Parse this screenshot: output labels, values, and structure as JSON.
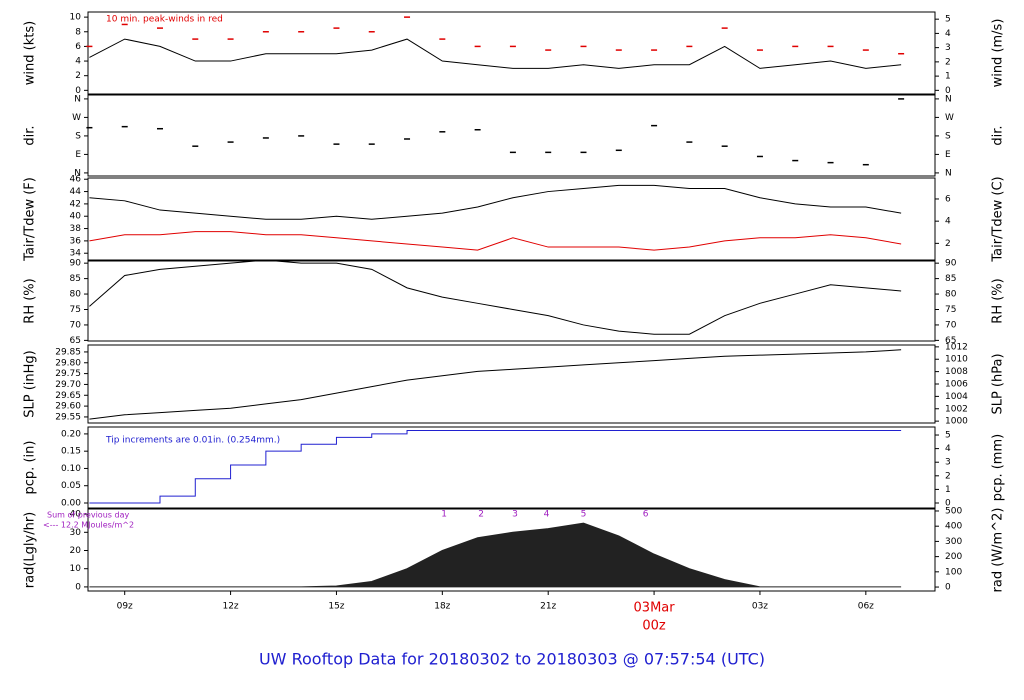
{
  "title": "UW Rooftop Data for 20180302  to  20180303 @ 07:57:54  (UTC)",
  "chart_data": [
    {
      "type": "line",
      "ylabel": "wind (kts)",
      "y2label": "wind (m/s)",
      "annotation": "10 min. peak-winds in red",
      "annotation_color": "#e00000",
      "xlim": [
        7.96,
        31.96
      ],
      "x": [
        8,
        9,
        10,
        11,
        12,
        13,
        14,
        15,
        16,
        17,
        18,
        19,
        20,
        21,
        22,
        23,
        24,
        25,
        26,
        27,
        28,
        29,
        30,
        31
      ],
      "ylim": [
        -0.5,
        10.7
      ],
      "yticks": [
        0,
        2,
        4,
        6,
        8,
        10
      ],
      "y2lim": [
        -0.257,
        5.504
      ],
      "y2ticks": [
        0,
        1,
        2,
        3,
        4,
        5
      ],
      "series": [
        {
          "draw": "line",
          "color": "#000000",
          "values": [
            4.5,
            7,
            6,
            4,
            4,
            5,
            5,
            5,
            5.5,
            7,
            4,
            3.5,
            3,
            3,
            3.5,
            3,
            3.5,
            3.5,
            6,
            3,
            3.5,
            4,
            3,
            3.5
          ]
        },
        {
          "draw": "dash",
          "color": "#e00000",
          "values": [
            6,
            9,
            8.5,
            7,
            7,
            8,
            8,
            8.5,
            8,
            10,
            7,
            6,
            6,
            5.5,
            6,
            5.5,
            5.5,
            6,
            8.5,
            5.5,
            6,
            6,
            5.5,
            5
          ]
        }
      ]
    },
    {
      "type": "line",
      "ylabel": "dir.",
      "y2label": "dir.",
      "xlim": [
        7.96,
        31.96
      ],
      "x": [
        8,
        9,
        10,
        11,
        12,
        13,
        14,
        15,
        16,
        17,
        18,
        19,
        20,
        21,
        22,
        23,
        24,
        25,
        26,
        27,
        28,
        29,
        30,
        31
      ],
      "ylim": [
        -15,
        379
      ],
      "yticks": [
        {
          "value": 0,
          "label": "N"
        },
        {
          "value": 90,
          "label": "E"
        },
        {
          "value": 180,
          "label": "S"
        },
        {
          "value": 270,
          "label": "W"
        },
        {
          "value": 360,
          "label": "N"
        }
      ],
      "y2lim": [
        -15,
        379
      ],
      "y2ticks": [
        {
          "value": 0,
          "label": "N"
        },
        {
          "value": 90,
          "label": "E"
        },
        {
          "value": 180,
          "label": "S"
        },
        {
          "value": 270,
          "label": "W"
        },
        {
          "value": 360,
          "label": "N"
        }
      ],
      "series": [
        {
          "draw": "dash",
          "color": "#000000",
          "values": [
            220,
            225,
            215,
            130,
            150,
            170,
            180,
            140,
            140,
            165,
            200,
            210,
            100,
            100,
            100,
            110,
            230,
            150,
            130,
            80,
            60,
            50,
            40,
            360
          ]
        }
      ]
    },
    {
      "type": "line",
      "ylabel": "Tair/Tdew (F)",
      "y2label": "Tair/Tdew (C)",
      "xlim": [
        7.96,
        31.96
      ],
      "x": [
        8,
        9,
        10,
        11,
        12,
        13,
        14,
        15,
        16,
        17,
        18,
        19,
        20,
        21,
        22,
        23,
        24,
        25,
        26,
        27,
        28,
        29,
        30,
        31
      ],
      "ylim": [
        32.9,
        46.2
      ],
      "yticks": [
        34,
        36,
        38,
        40,
        42,
        44,
        46
      ],
      "y2lim": [
        0.5,
        7.89
      ],
      "y2ticks": [
        2,
        4,
        6
      ],
      "series": [
        {
          "draw": "line",
          "color": "#000000",
          "values": [
            43,
            42.5,
            41,
            40.5,
            40,
            39.5,
            39.5,
            40,
            39.5,
            40,
            40.5,
            41.5,
            43,
            44,
            44.5,
            45,
            45,
            44.5,
            44.5,
            43,
            42,
            41.5,
            41.5,
            40.5
          ]
        },
        {
          "draw": "line",
          "color": "#e00000",
          "values": [
            36,
            37,
            37,
            37.5,
            37.5,
            37,
            37,
            36.5,
            36,
            35.5,
            35,
            34.5,
            36.5,
            35,
            35,
            35,
            34.5,
            35,
            36,
            36.5,
            36.5,
            37,
            36.5,
            35.5
          ]
        }
      ]
    },
    {
      "type": "line",
      "ylabel": "RH (%)",
      "y2label": "RH (%)",
      "xlim": [
        7.96,
        31.96
      ],
      "x": [
        8,
        9,
        10,
        11,
        12,
        13,
        14,
        15,
        16,
        17,
        18,
        19,
        20,
        21,
        22,
        23,
        24,
        25,
        26,
        27,
        28,
        29,
        30,
        31
      ],
      "ylim": [
        64.8,
        90.7
      ],
      "yticks": [
        65,
        70,
        75,
        80,
        85,
        90
      ],
      "y2lim": [
        64.8,
        90.7
      ],
      "y2ticks": [
        65,
        70,
        75,
        80,
        85,
        90
      ],
      "series": [
        {
          "draw": "line",
          "color": "#000000",
          "values": [
            76,
            86,
            88,
            89,
            90,
            91,
            90,
            90,
            88,
            82,
            79,
            77,
            75,
            73,
            70,
            68,
            67,
            67,
            73,
            77,
            80,
            83,
            82,
            81
          ]
        }
      ]
    },
    {
      "type": "line",
      "ylabel": "SLP (inHg)",
      "y2label": "SLP (hPa)",
      "xlim": [
        7.96,
        31.96
      ],
      "x": [
        8,
        9,
        10,
        11,
        12,
        13,
        14,
        15,
        16,
        17,
        18,
        19,
        20,
        21,
        22,
        23,
        24,
        25,
        26,
        27,
        28,
        29,
        30,
        31
      ],
      "ylim": [
        29.522,
        29.882
      ],
      "yticks": [
        29.55,
        {
          "value": 29.6,
          "label": "29.60"
        },
        29.65,
        {
          "value": 29.7,
          "label": "29.70"
        },
        29.75,
        {
          "value": 29.8,
          "label": "29.80"
        },
        29.85
      ],
      "y2lim": [
        999.7,
        1012.3
      ],
      "y2ticks": [
        1000,
        1002,
        1004,
        1006,
        1008,
        1010,
        1012
      ],
      "series": [
        {
          "draw": "line",
          "color": "#000000",
          "values": [
            29.54,
            29.56,
            29.57,
            29.58,
            29.59,
            29.61,
            29.63,
            29.66,
            29.69,
            29.72,
            29.74,
            29.76,
            29.77,
            29.78,
            29.79,
            29.8,
            29.81,
            29.82,
            29.83,
            29.835,
            29.84,
            29.845,
            29.85,
            29.86
          ]
        }
      ]
    },
    {
      "type": "line",
      "ylabel": "pcp. (in)",
      "y2label": "pcp. (mm)",
      "annotation": "Tip increments are 0.01in. (0.254mm.)",
      "annotation_color": "#2020d0",
      "xlim": [
        7.96,
        31.96
      ],
      "x": [
        8,
        9,
        10,
        11,
        12,
        13,
        14,
        15,
        16,
        17,
        18,
        19,
        20,
        21,
        22,
        23,
        24,
        25,
        26,
        27,
        28,
        29,
        30,
        31
      ],
      "ylim": [
        -0.0145,
        0.22
      ],
      "yticks": [
        {
          "value": 0,
          "label": "0.00"
        },
        0.05,
        {
          "value": 0.1,
          "label": "0.10"
        },
        0.15,
        {
          "value": 0.2,
          "label": "0.20"
        }
      ],
      "y2lim": [
        -0.368,
        5.59
      ],
      "y2ticks": [
        0,
        1,
        2,
        3,
        4,
        5
      ],
      "series": [
        {
          "draw": "step",
          "color": "#2020d0",
          "values": [
            0,
            0,
            0.02,
            0.07,
            0.11,
            0.15,
            0.17,
            0.19,
            0.2,
            0.21,
            0.21,
            0.21,
            0.21,
            0.21,
            0.21,
            0.21,
            0.21,
            0.21,
            0.21,
            0.21,
            0.21,
            0.21,
            0.21,
            0.21
          ]
        }
      ]
    },
    {
      "type": "line",
      "ylabel": "rad(Lgly/hr)",
      "y2label": "rad (W/m^2)",
      "notes": [
        "Sum of previous day",
        "<--- 12.2 MJoules/m^2"
      ],
      "notes_color": "#a020c0",
      "hour_marks": [
        {
          "x": 18.05,
          "label": "1"
        },
        {
          "x": 19.1,
          "label": "2"
        },
        {
          "x": 20.06,
          "label": "3"
        },
        {
          "x": 20.95,
          "label": "4"
        },
        {
          "x": 22.0,
          "label": "5"
        },
        {
          "x": 23.76,
          "label": "6"
        }
      ],
      "xlim": [
        7.96,
        31.96
      ],
      "x": [
        8,
        9,
        10,
        11,
        12,
        13,
        14,
        15,
        16,
        17,
        18,
        19,
        20,
        21,
        22,
        23,
        24,
        25,
        26,
        27,
        28,
        29,
        30,
        31
      ],
      "xticks": [
        {
          "value": 9,
          "label": "09z"
        },
        {
          "value": 12,
          "label": "12z"
        },
        {
          "value": 15,
          "label": "15z"
        },
        {
          "value": 18,
          "label": "18z"
        },
        {
          "value": 21,
          "label": "21z"
        },
        {
          "value": 24,
          "label": "00z",
          "date": "03Mar",
          "color": "#e00000"
        },
        {
          "value": 27,
          "label": "03z"
        },
        {
          "value": 30,
          "label": "06z"
        }
      ],
      "ylim": [
        -2.25,
        42.8
      ],
      "yticks": [
        0,
        10,
        20,
        30,
        40
      ],
      "y2lim": [
        -26,
        513
      ],
      "y2ticks": [
        0,
        100,
        200,
        300,
        400,
        500
      ],
      "series": [
        {
          "draw": "area",
          "color": "#222222",
          "values": [
            0,
            0,
            0,
            0,
            0,
            0,
            0,
            0.5,
            3,
            10,
            20,
            27,
            30,
            32,
            35,
            28,
            18,
            10,
            4,
            0,
            0,
            0,
            0,
            0
          ]
        }
      ]
    }
  ]
}
